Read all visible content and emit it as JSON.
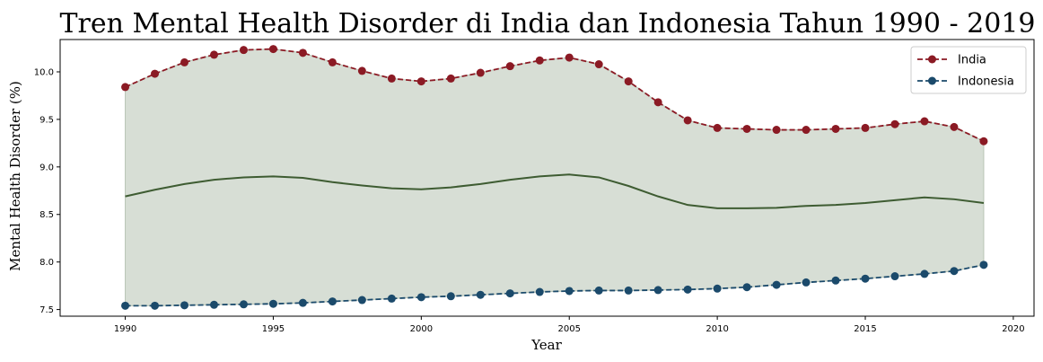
{
  "chart_data": {
    "type": "line",
    "title": "Tren Mental Health Disorder di India dan Indonesia Tahun 1990 - 2019",
    "xlabel": "Year",
    "ylabel": "Mental Health Disorder (%)",
    "xlim": [
      1987.8,
      2020.7
    ],
    "ylim": [
      7.43,
      10.34
    ],
    "xticks": [
      1990,
      1995,
      2000,
      2005,
      2010,
      2015,
      2020
    ],
    "yticks": [
      7.5,
      8.0,
      8.5,
      9.0,
      9.5,
      10.0
    ],
    "grid": false,
    "legend_position": "top-right",
    "x": [
      1990,
      1991,
      1992,
      1993,
      1994,
      1995,
      1996,
      1997,
      1998,
      1999,
      2000,
      2001,
      2002,
      2003,
      2004,
      2005,
      2006,
      2007,
      2008,
      2009,
      2010,
      2011,
      2012,
      2013,
      2014,
      2015,
      2016,
      2017,
      2018,
      2019
    ],
    "series": [
      {
        "name": "India",
        "color": "#8b1a24",
        "style": "dashed-marker",
        "values": [
          9.84,
          9.98,
          10.1,
          10.18,
          10.23,
          10.24,
          10.2,
          10.1,
          10.01,
          9.93,
          9.9,
          9.93,
          9.99,
          10.06,
          10.12,
          10.15,
          10.08,
          9.9,
          9.68,
          9.49,
          9.41,
          9.4,
          9.39,
          9.39,
          9.4,
          9.41,
          9.45,
          9.48,
          9.42,
          9.27
        ]
      },
      {
        "name": "Indonesia",
        "color": "#1b4a6b",
        "style": "dashed-marker",
        "values": [
          7.54,
          7.54,
          7.545,
          7.55,
          7.555,
          7.56,
          7.57,
          7.585,
          7.6,
          7.615,
          7.63,
          7.64,
          7.655,
          7.67,
          7.685,
          7.695,
          7.7,
          7.7,
          7.705,
          7.71,
          7.72,
          7.735,
          7.76,
          7.785,
          7.805,
          7.825,
          7.85,
          7.875,
          7.905,
          7.97
        ]
      }
    ],
    "mean_line": {
      "color": "#3e5c32",
      "values": [
        8.69,
        8.76,
        8.82,
        8.865,
        8.89,
        8.9,
        8.885,
        8.84,
        8.805,
        8.775,
        8.765,
        8.785,
        8.82,
        8.865,
        8.9,
        8.92,
        8.89,
        8.8,
        8.69,
        8.6,
        8.565,
        8.565,
        8.57,
        8.59,
        8.6,
        8.62,
        8.65,
        8.68,
        8.66,
        8.62
      ]
    },
    "fill_color": "#d7ded5"
  }
}
